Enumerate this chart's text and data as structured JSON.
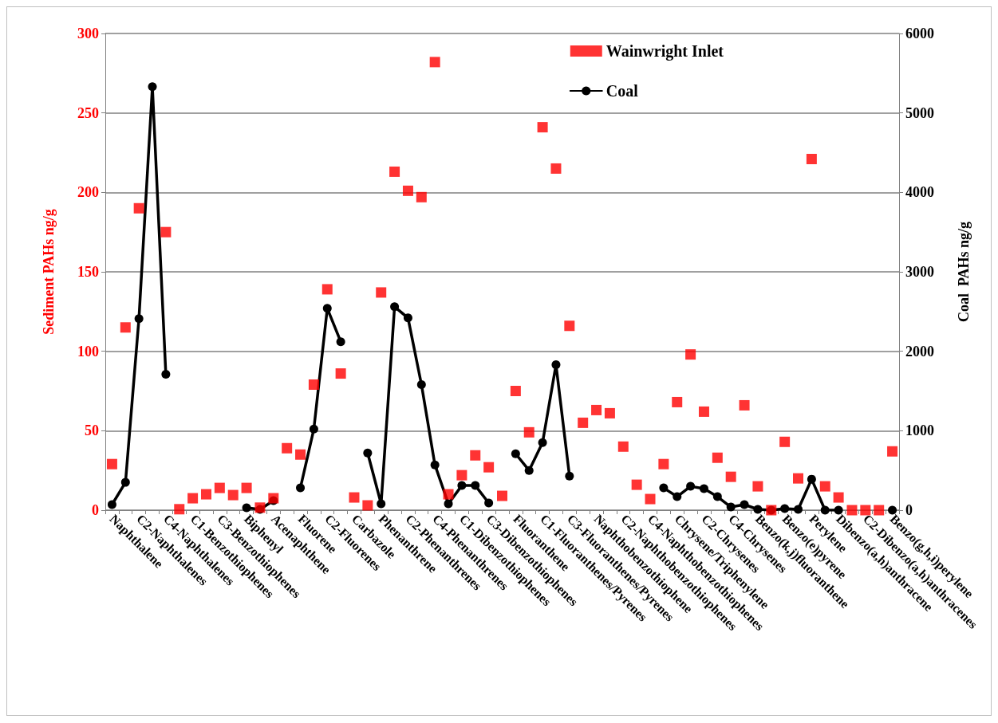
{
  "chart_data": {
    "type": "scatter",
    "ylabel": "Sediment PAHs ng/g",
    "y2label": "Coal  PAHs ng/g",
    "categories": [
      "Naphthalene",
      null,
      "C2-Naphthalenes",
      null,
      "C4-Naphthalenes",
      null,
      "C1-Benzothiophenes",
      null,
      "C3-Benzothiophenes",
      null,
      "Biphenyl",
      null,
      "Acenaphthene",
      null,
      "Fluorene",
      null,
      "C2-Fluorenes",
      null,
      "Carbazole",
      null,
      "Phenanthrene",
      null,
      "C2-Phenanthrenes",
      null,
      "C4-Phenanthrenes",
      null,
      "C1-Dibenzothiophenes",
      null,
      "C3-Dibenzothiophenes",
      null,
      "Fluoranthene",
      null,
      "C1-Fluoranthenes/Pyrenes",
      null,
      "C3-Fluoranthenes/Pyrenes",
      null,
      "Naphthobenzothiophene",
      null,
      "C2-Naphthobenzothiophenes",
      null,
      "C4-Naphthobenzothiophenes",
      null,
      "Chrysene/Triphenylene",
      null,
      "C2-Chrysenes",
      null,
      "C4-Chrysenes",
      null,
      "Benzo(k,j)fluoranthene",
      null,
      "Benzo(e)pyrene",
      null,
      "Perylene",
      null,
      "Dibenzo(a,h)anthracene",
      null,
      "C2-Dibenzo(a,h)anthracenes",
      null,
      "Benzo(g,h,i)perylene"
    ],
    "series": [
      {
        "name": "Wainwright Inlet",
        "marker": "square",
        "axis": "y",
        "color": "#ff0000",
        "values": [
          29,
          115,
          190,
          null,
          175,
          0.6,
          7.5,
          10,
          14,
          9.5,
          14,
          1.6,
          7.5,
          39,
          35,
          79,
          139,
          86,
          8,
          3,
          137,
          213,
          201,
          197,
          282,
          10,
          22,
          34.5,
          27,
          9,
          75,
          49,
          241,
          215,
          116,
          55,
          63,
          61,
          40,
          16,
          7,
          29,
          68,
          98,
          62,
          33,
          21,
          66,
          15,
          0,
          43,
          20,
          221,
          15,
          8,
          0,
          0,
          0,
          37
        ]
      },
      {
        "name": "Coal",
        "type": "line",
        "marker": "circle",
        "line_style": "solid",
        "axis": "y2",
        "color": "#000000",
        "values": [
          70,
          350,
          2410,
          5330,
          1710,
          null,
          null,
          null,
          null,
          null,
          30,
          10,
          120,
          null,
          280,
          1020,
          2540,
          2120,
          null,
          720,
          80,
          2560,
          2420,
          1580,
          570,
          80,
          310,
          310,
          90,
          null,
          710,
          500,
          850,
          1830,
          430,
          null,
          null,
          null,
          null,
          null,
          null,
          280,
          170,
          300,
          270,
          170,
          40,
          70,
          10,
          0,
          20,
          10,
          390,
          0,
          0,
          null,
          null,
          null,
          0
        ]
      }
    ],
    "ylim": [
      0,
      300
    ],
    "yticks": [
      0,
      50,
      100,
      150,
      200,
      250,
      300
    ],
    "y2lim": [
      0,
      6000
    ],
    "y2ticks": [
      0,
      1000,
      2000,
      3000,
      4000,
      5000,
      6000
    ],
    "grid": "y",
    "legend": "top right"
  }
}
